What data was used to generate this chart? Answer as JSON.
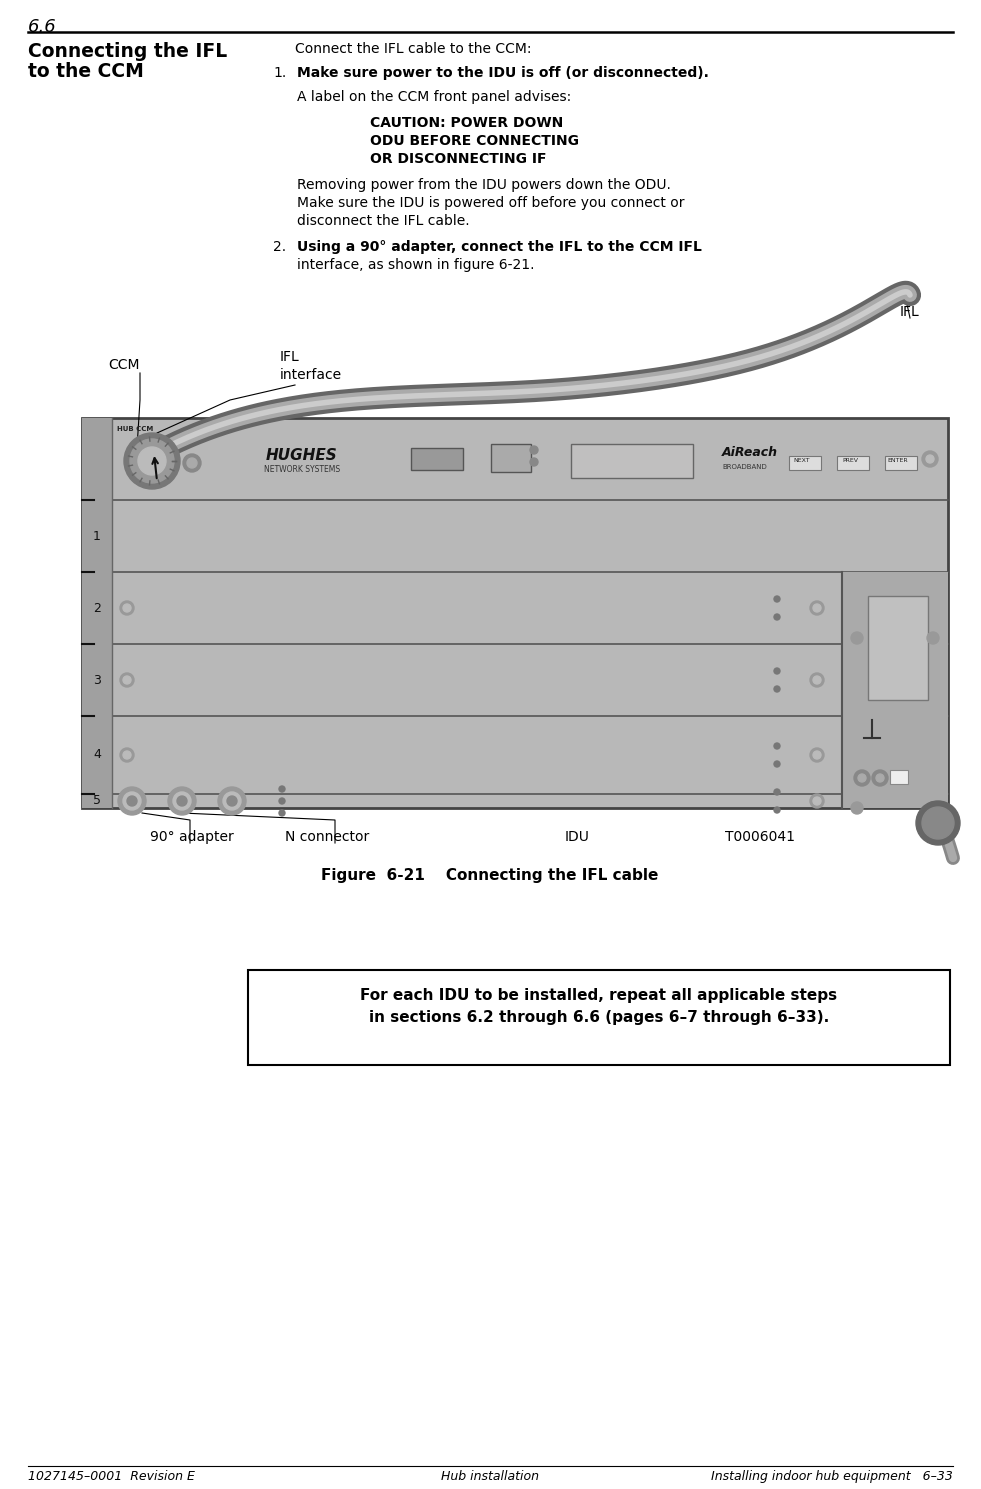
{
  "section_number": "6.6",
  "section_title_line1": "Connecting the IFL",
  "section_title_line2": "to the CCM",
  "intro_text": "Connect the IFL cable to the CCM:",
  "step1_num": "1.",
  "step1_bold": "Make sure power to the IDU is off (or disconnected).",
  "step1_sub1": "A label on the CCM front panel advises:",
  "caution_line1": "CAUTION: POWER DOWN",
  "caution_line2": "ODU BEFORE CONNECTING",
  "caution_line3": "OR DISCONNECTING IF",
  "step1_para1": "Removing power from the IDU powers down the ODU.",
  "step1_para2": "Make sure the IDU is powered off before you connect or",
  "step1_para3": "disconnect the IFL cable.",
  "step2_num": "2.",
  "step2_bold": "Using a 90° adapter, connect the IFL to the CCM IFL",
  "step2_text": "interface, as shown in figure 6-21.",
  "figure_caption": "Figure  6-21    Connecting the IFL cable",
  "box_line1": "For each IDU to be installed, repeat all applicable steps",
  "box_line2": "in sections 6.2 through 6.6 (pages 6–7 through 6–33).",
  "footer_left": "1027145–0001  Revision E",
  "footer_center": "Hub installation",
  "footer_right": "Installing indoor hub equipment   6–33",
  "lbl_IFL": "IFL",
  "lbl_IFL_interface_1": "IFL",
  "lbl_IFL_interface_2": "interface",
  "lbl_CCM": "CCM",
  "lbl_90adapter": "90° adapter",
  "lbl_N_connector": "N connector",
  "lbl_IDU": "IDU",
  "lbl_T": "T0006041",
  "bg": "#ffffff",
  "fg": "#000000"
}
